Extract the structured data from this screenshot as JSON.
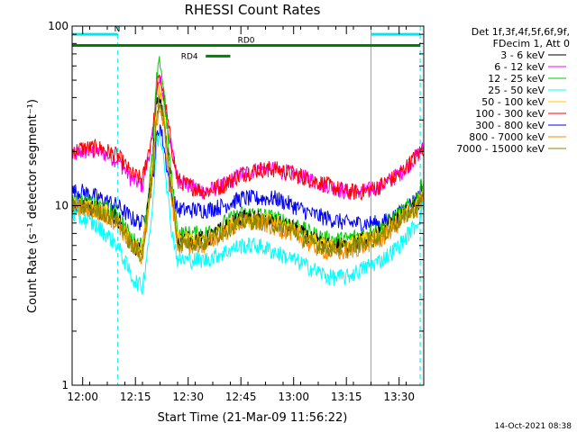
{
  "chart_data": {
    "type": "line",
    "title": "RHESSI Count Rates",
    "xlabel": "Start Time (21-Mar-09 11:56:22)",
    "ylabel": "Count Rate (s⁻¹ detector segment⁻¹)",
    "y_scale": "log",
    "ylim": [
      1,
      100
    ],
    "y_ticks": [
      {
        "value": 1,
        "label": "1"
      },
      {
        "value": 10,
        "label": "10"
      },
      {
        "value": 100,
        "label": "100"
      }
    ],
    "xlim_minutes": [
      -3,
      37
    ],
    "x_ticks": [
      {
        "value": 0,
        "label": "12:00"
      },
      {
        "value": 15,
        "label": "12:15"
      },
      {
        "value": 30,
        "label": "12:30"
      },
      {
        "value": 45,
        "label": "12:45"
      },
      {
        "value": 60,
        "label": "13:00"
      },
      {
        "value": 75,
        "label": "13:15"
      },
      {
        "value": 90,
        "label": "13:30"
      }
    ],
    "legend": {
      "placement": "right",
      "header": [
        "Det 1f,3f,4f,5f,6f,9f,",
        "FDecim 1, Att 0"
      ],
      "entries": [
        {
          "label": "3 - 6 keV",
          "color": "#000000"
        },
        {
          "label": "6 - 12 keV",
          "color": "#ff00ff"
        },
        {
          "label": "12 - 25 keV",
          "color": "#00cc00"
        },
        {
          "label": "25 - 50 keV",
          "color": "#00ffff"
        },
        {
          "label": "50 - 100 keV",
          "color": "#ffcc00"
        },
        {
          "label": "100 - 300 keV",
          "color": "#ff0000"
        },
        {
          "label": "300 - 800 keV",
          "color": "#0000ff"
        },
        {
          "label": "800 - 7000 keV",
          "color": "#ff8800"
        },
        {
          "label": "7000 - 15000 keV",
          "color": "#888800"
        }
      ]
    },
    "bars": [
      {
        "label": "N",
        "start": -3,
        "end": 10,
        "level": 90,
        "color": "#00e5ee",
        "thick": false
      },
      {
        "label": "",
        "start": 82,
        "end": 96,
        "level": 90,
        "color": "#00e5ee",
        "thick": false
      },
      {
        "label": "RD0",
        "start": -3,
        "end": 96,
        "level": 78,
        "color": "#008000",
        "thick": true
      },
      {
        "label": "RD4",
        "start": 35,
        "end": 42,
        "level": 68,
        "color": "#008000",
        "thick": true
      }
    ],
    "vlines_solid": [
      -3,
      82
    ],
    "vlines_dashed": [
      10,
      96
    ],
    "series_x_range": [
      -3,
      97
    ],
    "series": [
      {
        "color": "#ff00ff",
        "points": [
          [
            -3,
            19
          ],
          [
            0,
            20
          ],
          [
            5,
            20
          ],
          [
            10,
            18
          ],
          [
            14,
            14
          ],
          [
            17,
            13
          ],
          [
            20,
            25
          ],
          [
            21,
            42
          ],
          [
            22,
            50
          ],
          [
            23,
            40
          ],
          [
            25,
            22
          ],
          [
            27,
            14
          ],
          [
            30,
            13
          ],
          [
            35,
            12
          ],
          [
            40,
            13
          ],
          [
            45,
            15
          ],
          [
            50,
            16
          ],
          [
            55,
            16
          ],
          [
            60,
            15
          ],
          [
            65,
            14
          ],
          [
            70,
            13
          ],
          [
            75,
            12
          ],
          [
            80,
            12
          ],
          [
            85,
            13
          ],
          [
            90,
            15
          ],
          [
            95,
            19
          ],
          [
            97,
            21
          ]
        ]
      },
      {
        "color": "#ff0000",
        "points": [
          [
            -3,
            20
          ],
          [
            0,
            21
          ],
          [
            5,
            21
          ],
          [
            10,
            19
          ],
          [
            14,
            15
          ],
          [
            17,
            14
          ],
          [
            20,
            26
          ],
          [
            21,
            45
          ],
          [
            22,
            52
          ],
          [
            23,
            42
          ],
          [
            25,
            23
          ],
          [
            27,
            14
          ],
          [
            30,
            13
          ],
          [
            35,
            12
          ],
          [
            40,
            13
          ],
          [
            45,
            15
          ],
          [
            50,
            16
          ],
          [
            55,
            16
          ],
          [
            60,
            15
          ],
          [
            65,
            14
          ],
          [
            70,
            13
          ],
          [
            75,
            12
          ],
          [
            80,
            12
          ],
          [
            85,
            13
          ],
          [
            90,
            15
          ],
          [
            95,
            19
          ],
          [
            97,
            21
          ]
        ]
      },
      {
        "color": "#0000ff",
        "points": [
          [
            -3,
            12
          ],
          [
            0,
            12
          ],
          [
            5,
            11
          ],
          [
            10,
            10
          ],
          [
            14,
            8.5
          ],
          [
            17,
            8
          ],
          [
            20,
            14
          ],
          [
            21,
            24
          ],
          [
            22,
            28
          ],
          [
            23,
            22
          ],
          [
            25,
            12
          ],
          [
            27,
            9.5
          ],
          [
            30,
            9.5
          ],
          [
            35,
            9.5
          ],
          [
            40,
            10
          ],
          [
            45,
            11
          ],
          [
            50,
            11
          ],
          [
            55,
            11
          ],
          [
            60,
            10
          ],
          [
            65,
            9
          ],
          [
            70,
            8.5
          ],
          [
            75,
            8
          ],
          [
            80,
            8
          ],
          [
            85,
            8
          ],
          [
            90,
            9
          ],
          [
            95,
            11
          ],
          [
            97,
            13
          ]
        ]
      },
      {
        "color": "#00cc00",
        "points": [
          [
            -3,
            10.5
          ],
          [
            0,
            10.5
          ],
          [
            5,
            10
          ],
          [
            10,
            9
          ],
          [
            14,
            6.5
          ],
          [
            17,
            6
          ],
          [
            20,
            20
          ],
          [
            21,
            50
          ],
          [
            22,
            65
          ],
          [
            23,
            45
          ],
          [
            25,
            16
          ],
          [
            27,
            7
          ],
          [
            30,
            7
          ],
          [
            35,
            7
          ],
          [
            40,
            8
          ],
          [
            45,
            9
          ],
          [
            50,
            9
          ],
          [
            55,
            8.5
          ],
          [
            60,
            8
          ],
          [
            65,
            7
          ],
          [
            70,
            6.5
          ],
          [
            75,
            6.5
          ],
          [
            80,
            7
          ],
          [
            85,
            7.5
          ],
          [
            90,
            9
          ],
          [
            95,
            11
          ],
          [
            97,
            14
          ]
        ]
      },
      {
        "color": "#000000",
        "points": [
          [
            -3,
            10
          ],
          [
            0,
            10
          ],
          [
            5,
            9.5
          ],
          [
            10,
            8.5
          ],
          [
            14,
            6
          ],
          [
            17,
            5.5
          ],
          [
            20,
            18
          ],
          [
            21,
            36
          ],
          [
            22,
            40
          ],
          [
            23,
            32
          ],
          [
            25,
            14
          ],
          [
            27,
            6.5
          ],
          [
            30,
            6.5
          ],
          [
            35,
            6.5
          ],
          [
            40,
            7.5
          ],
          [
            45,
            8.5
          ],
          [
            50,
            8.5
          ],
          [
            55,
            8
          ],
          [
            60,
            7.5
          ],
          [
            65,
            6.5
          ],
          [
            70,
            6
          ],
          [
            75,
            6
          ],
          [
            80,
            6.5
          ],
          [
            85,
            7
          ],
          [
            90,
            8.5
          ],
          [
            95,
            10
          ],
          [
            97,
            12
          ]
        ]
      },
      {
        "color": "#ffcc00",
        "points": [
          [
            -3,
            10
          ],
          [
            0,
            10
          ],
          [
            5,
            9.5
          ],
          [
            10,
            8.5
          ],
          [
            14,
            6
          ],
          [
            17,
            5.5
          ],
          [
            20,
            17
          ],
          [
            21,
            36
          ],
          [
            22,
            45
          ],
          [
            23,
            34
          ],
          [
            25,
            14
          ],
          [
            27,
            6.5
          ],
          [
            30,
            6.5
          ],
          [
            35,
            6.5
          ],
          [
            40,
            7.5
          ],
          [
            45,
            8.5
          ],
          [
            50,
            8.5
          ],
          [
            55,
            8
          ],
          [
            60,
            7.5
          ],
          [
            65,
            6.5
          ],
          [
            70,
            6
          ],
          [
            75,
            6
          ],
          [
            80,
            6.5
          ],
          [
            85,
            7
          ],
          [
            90,
            8.5
          ],
          [
            95,
            10
          ],
          [
            97,
            12
          ]
        ]
      },
      {
        "color": "#ff8800",
        "points": [
          [
            -3,
            9.5
          ],
          [
            0,
            9.5
          ],
          [
            5,
            9
          ],
          [
            10,
            8
          ],
          [
            14,
            5.8
          ],
          [
            17,
            5.2
          ],
          [
            20,
            15
          ],
          [
            21,
            30
          ],
          [
            22,
            35
          ],
          [
            23,
            28
          ],
          [
            25,
            12
          ],
          [
            27,
            6
          ],
          [
            30,
            6
          ],
          [
            35,
            6
          ],
          [
            40,
            7
          ],
          [
            45,
            8
          ],
          [
            50,
            8
          ],
          [
            55,
            7.5
          ],
          [
            60,
            7
          ],
          [
            65,
            6
          ],
          [
            70,
            5.5
          ],
          [
            75,
            5.5
          ],
          [
            80,
            6
          ],
          [
            85,
            6.5
          ],
          [
            90,
            8
          ],
          [
            95,
            9.5
          ],
          [
            97,
            11
          ]
        ]
      },
      {
        "color": "#888800",
        "points": [
          [
            -3,
            9.8
          ],
          [
            0,
            9.8
          ],
          [
            5,
            9.3
          ],
          [
            10,
            8.3
          ],
          [
            14,
            5.9
          ],
          [
            17,
            5.3
          ],
          [
            20,
            16
          ],
          [
            21,
            32
          ],
          [
            22,
            38
          ],
          [
            23,
            30
          ],
          [
            25,
            13
          ],
          [
            27,
            6.2
          ],
          [
            30,
            6.2
          ],
          [
            35,
            6.2
          ],
          [
            40,
            7.2
          ],
          [
            45,
            8.2
          ],
          [
            50,
            8.2
          ],
          [
            55,
            7.8
          ],
          [
            60,
            7.2
          ],
          [
            65,
            6.2
          ],
          [
            70,
            5.8
          ],
          [
            75,
            5.8
          ],
          [
            80,
            6.2
          ],
          [
            85,
            6.8
          ],
          [
            90,
            8.2
          ],
          [
            95,
            9.8
          ],
          [
            97,
            11.5
          ]
        ]
      },
      {
        "color": "#00ffff",
        "points": [
          [
            -3,
            9
          ],
          [
            0,
            8.5
          ],
          [
            5,
            7.5
          ],
          [
            10,
            6
          ],
          [
            14,
            4
          ],
          [
            17,
            3.5
          ],
          [
            20,
            10
          ],
          [
            21,
            22
          ],
          [
            22,
            25
          ],
          [
            23,
            20
          ],
          [
            25,
            8
          ],
          [
            27,
            5
          ],
          [
            30,
            5
          ],
          [
            35,
            5
          ],
          [
            40,
            5.5
          ],
          [
            45,
            6
          ],
          [
            50,
            6
          ],
          [
            55,
            5.5
          ],
          [
            60,
            5
          ],
          [
            65,
            4.5
          ],
          [
            70,
            4
          ],
          [
            75,
            4
          ],
          [
            80,
            4.5
          ],
          [
            85,
            5
          ],
          [
            90,
            6
          ],
          [
            95,
            8
          ],
          [
            97,
            10
          ]
        ]
      }
    ]
  },
  "timestamp": "14-Oct-2021 08:38"
}
